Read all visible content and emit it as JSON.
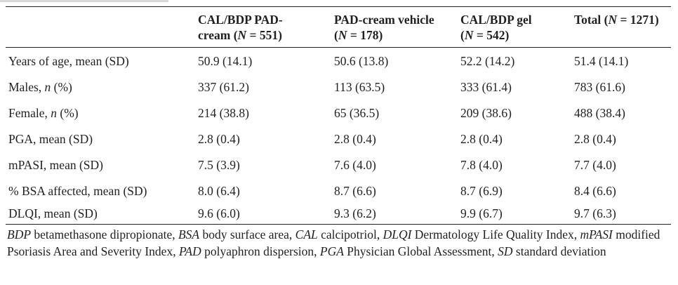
{
  "table": {
    "headers": [
      "",
      "CAL/BDP PAD-cream (N = 551)",
      "PAD-cream vehicle (N = 178)",
      "CAL/BDP gel (N = 542)",
      "Total (N = 1271)"
    ],
    "header_lines": [
      {
        "line1": "",
        "line2": ""
      },
      {
        "line1": "CAL/BDP PAD-",
        "line2_pre": "cream (",
        "n": "N",
        "line2_post": " = 551)"
      },
      {
        "line1": "PAD-cream vehicle",
        "line2_pre": "(",
        "n": "N",
        "line2_post": " = 178)"
      },
      {
        "line1": "CAL/BDP gel",
        "line2_pre": "(",
        "n": "N",
        "line2_post": " = 542)"
      },
      {
        "line1_pre": "Total (",
        "n": "N",
        "line1_post": " = 1271)"
      }
    ],
    "rows": [
      {
        "label": "Years of age, mean (SD)",
        "values": [
          "50.9 (14.1)",
          "50.6 (13.8)",
          "52.2 (14.2)",
          "51.4 (14.1)"
        ]
      },
      {
        "label_pre": "Males, ",
        "label_italic": "n",
        "label_post": " (%)",
        "label": "Males, n (%)",
        "values": [
          "337 (61.2)",
          "113 (63.5)",
          "333 (61.4)",
          "783 (61.6)"
        ]
      },
      {
        "label_pre": "Female, ",
        "label_italic": "n",
        "label_post": " (%)",
        "label": "Female, n (%)",
        "values": [
          "214 (38.8)",
          "65 (36.5)",
          "209 (38.6)",
          "488 (38.4)"
        ]
      },
      {
        "label": "PGA, mean (SD)",
        "values": [
          "2.8 (0.4)",
          "2.8 (0.4)",
          "2.8 (0.4)",
          "2.8 (0.4)"
        ]
      },
      {
        "label": "mPASI, mean (SD)",
        "values": [
          "7.5 (3.9)",
          "7.6 (4.0)",
          "7.8 (4.0)",
          "7.7 (4.0)"
        ]
      },
      {
        "label": "% BSA affected, mean (SD)",
        "values": [
          "8.0 (6.4)",
          "8.7 (6.6)",
          "8.7 (6.9)",
          "8.4 (6.6)"
        ]
      },
      {
        "label": "DLQI, mean (SD)",
        "values": [
          "9.6 (6.0)",
          "9.3 (6.2)",
          "9.9 (6.7)",
          "9.7 (6.3)"
        ]
      }
    ]
  },
  "footnote": [
    {
      "abbr": "BDP",
      "text": " betamethasone dipropionate, "
    },
    {
      "abbr": "BSA",
      "text": " body surface area, "
    },
    {
      "abbr": "CAL",
      "text": " calcipotriol, "
    },
    {
      "abbr": "DLQI",
      "text": " Dermatology Life Quality Index, "
    },
    {
      "abbr": "mPASI",
      "text": " modified Psoriasis Area and Severity Index, "
    },
    {
      "abbr": "PAD",
      "text": " polyaphron dispersion, "
    },
    {
      "abbr": "PGA",
      "text": " Physician Global Assessment, "
    },
    {
      "abbr": "SD",
      "text": " standard deviation"
    }
  ]
}
